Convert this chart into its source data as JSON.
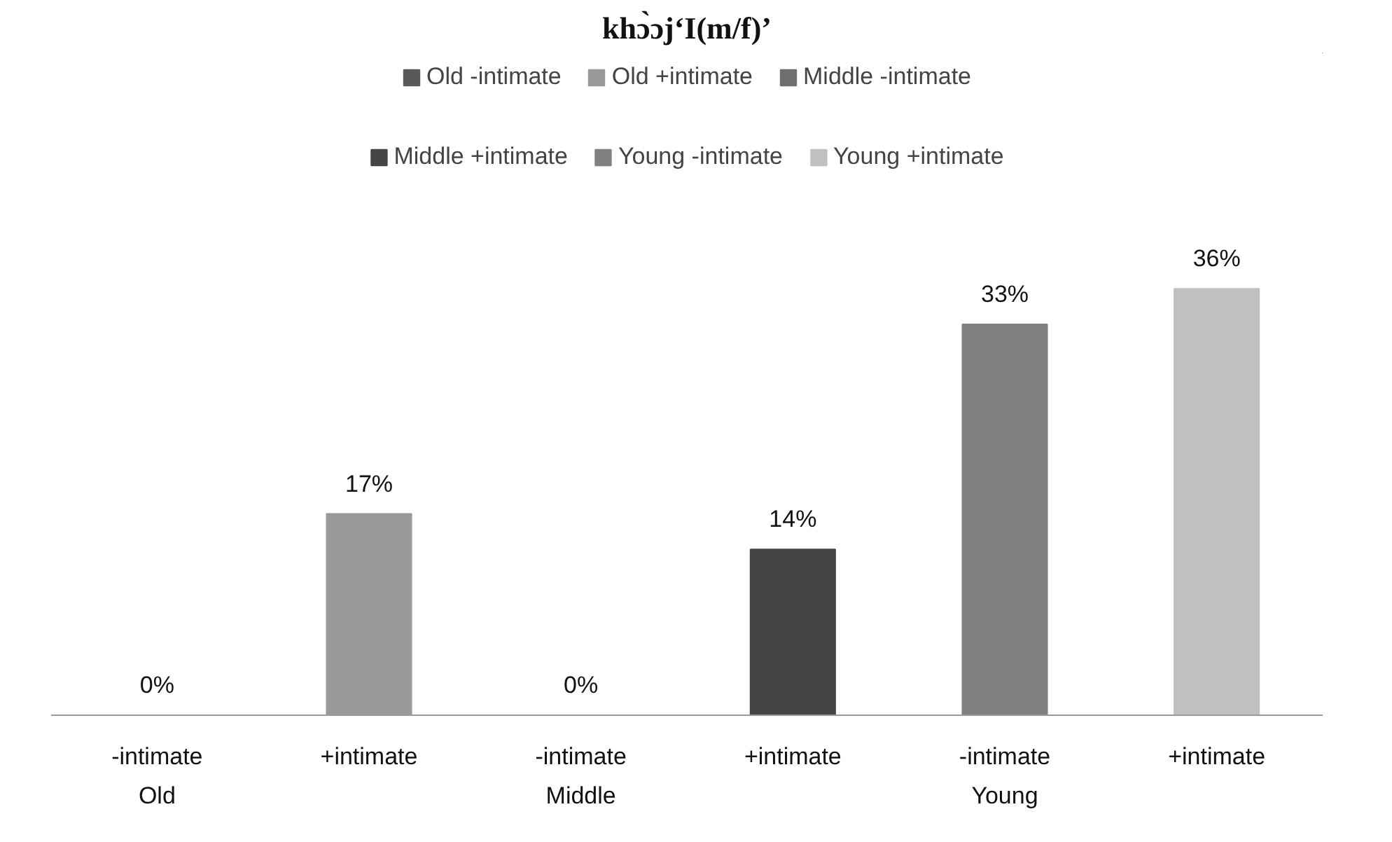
{
  "chart_data": {
    "type": "bar",
    "title": "khɔ̀ɔj‘I(m/f)’",
    "categories": [
      "-intimate\nOld",
      "+intimate",
      "-intimate\nMiddle",
      "+intimate",
      "-intimate\nYoung",
      "+intimate"
    ],
    "series": [
      {
        "name": "Old -intimate",
        "color": "#595959",
        "values": [
          0,
          null,
          null,
          null,
          null,
          null
        ],
        "value_labels": [
          "0%",
          null,
          null,
          null,
          null,
          null
        ]
      },
      {
        "name": "Old +intimate",
        "color": "#999999",
        "values": [
          null,
          17,
          null,
          null,
          null,
          null
        ],
        "value_labels": [
          null,
          "17%",
          null,
          null,
          null,
          null
        ]
      },
      {
        "name": "Middle -intimate",
        "color": "#6e6e6e",
        "values": [
          null,
          null,
          0,
          null,
          null,
          null
        ],
        "value_labels": [
          null,
          null,
          "0%",
          null,
          null,
          null
        ]
      },
      {
        "name": "Middle +intimate",
        "color": "#454545",
        "values": [
          null,
          null,
          null,
          14,
          null,
          null
        ],
        "value_labels": [
          null,
          null,
          null,
          "14%",
          null,
          null
        ]
      },
      {
        "name": "Young -intimate",
        "color": "#808080",
        "values": [
          null,
          null,
          null,
          null,
          33,
          null
        ],
        "value_labels": [
          null,
          null,
          null,
          null,
          "33%",
          null
        ]
      },
      {
        "name": "Young +intimate",
        "color": "#c0c0c0",
        "values": [
          null,
          null,
          null,
          null,
          null,
          36
        ],
        "value_labels": [
          null,
          null,
          null,
          null,
          null,
          "36%"
        ]
      }
    ],
    "tick_labels": "x",
    "legend": "top"
  }
}
